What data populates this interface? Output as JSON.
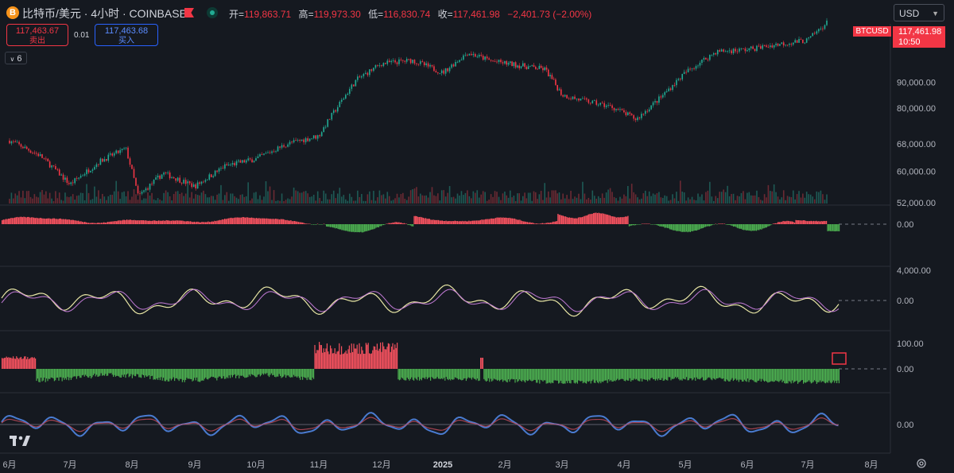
{
  "header": {
    "symbol_icon": "B",
    "title": "比特币/美元 · 4小时 · COINBASE",
    "ohlc": [
      {
        "label": "开",
        "value": "119,863.71"
      },
      {
        "label": "高",
        "value": "119,973.30"
      },
      {
        "label": "低",
        "value": "116,830.74"
      },
      {
        "label": "收",
        "value": "117,461.98"
      }
    ],
    "change": "−2,401.73 (−2.00%)",
    "currency": "USD"
  },
  "trade": {
    "sell_price": "117,463.67",
    "sell_label": "卖出",
    "spread": "0.01",
    "buy_price": "117,463.68",
    "buy_label": "买入"
  },
  "indicator_toggle": "6",
  "price_tag": {
    "ticker": "BTCUSD",
    "price": "117,461.98",
    "countdown": "10:50"
  },
  "colors": {
    "up": "#22ab94",
    "down": "#f23645",
    "buy": "#2962ff",
    "background": "#151920",
    "osc_up": "#4caf50",
    "osc_down": "#f7525f"
  },
  "chart_data": {
    "type": "line",
    "title": "",
    "x_axis_labels": [
      "6月",
      "7月",
      "8月",
      "9月",
      "10月",
      "11月",
      "12月",
      "2025",
      "2月",
      "3月",
      "4月",
      "5月",
      "6月",
      "7月",
      "8月"
    ],
    "price_axis_ticks": [
      {
        "value": 90000,
        "label": "90,000.00"
      },
      {
        "value": 80000,
        "label": "80,000.00"
      },
      {
        "value": 68000,
        "label": "68,000.00"
      },
      {
        "value": 60000,
        "label": "60,000.00"
      },
      {
        "value": 52000,
        "label": "52,000.00"
      }
    ],
    "log_scale": true,
    "price_series": {
      "name": "BTCUSD",
      "x": [
        0,
        0.5,
        1,
        1.5,
        1.9,
        2.1,
        2.5,
        3,
        3.5,
        4,
        4.5,
        5,
        5.3,
        5.6,
        6,
        6.5,
        7,
        7.4,
        7.8,
        8.3,
        8.7,
        9,
        9.3,
        9.8,
        10.2,
        10.6,
        11,
        11.5,
        12,
        12.5,
        13,
        13.3
      ],
      "values": [
        69000,
        64500,
        56500,
        63000,
        66500,
        53500,
        59500,
        56000,
        61500,
        63500,
        68000,
        70500,
        80500,
        91000,
        98000,
        99500,
        94000,
        103000,
        99000,
        97000,
        95500,
        85000,
        83000,
        80500,
        76000,
        84000,
        94000,
        103500,
        104500,
        107000,
        109000,
        118000
      ]
    },
    "panes": [
      {
        "name": "histogram-1",
        "ticks": [
          {
            "value": 0,
            "label": "0.00"
          }
        ]
      },
      {
        "name": "oscillator-2",
        "ticks": [
          {
            "value": 4000,
            "label": "4,000.00"
          },
          {
            "value": 0,
            "label": "0.00"
          }
        ]
      },
      {
        "name": "histogram-3",
        "ticks": [
          {
            "value": 100,
            "label": "100.00"
          },
          {
            "value": 0,
            "label": "0.00"
          }
        ]
      },
      {
        "name": "oscillator-4",
        "ticks": [
          {
            "value": 0,
            "label": "0.00"
          }
        ]
      }
    ]
  }
}
